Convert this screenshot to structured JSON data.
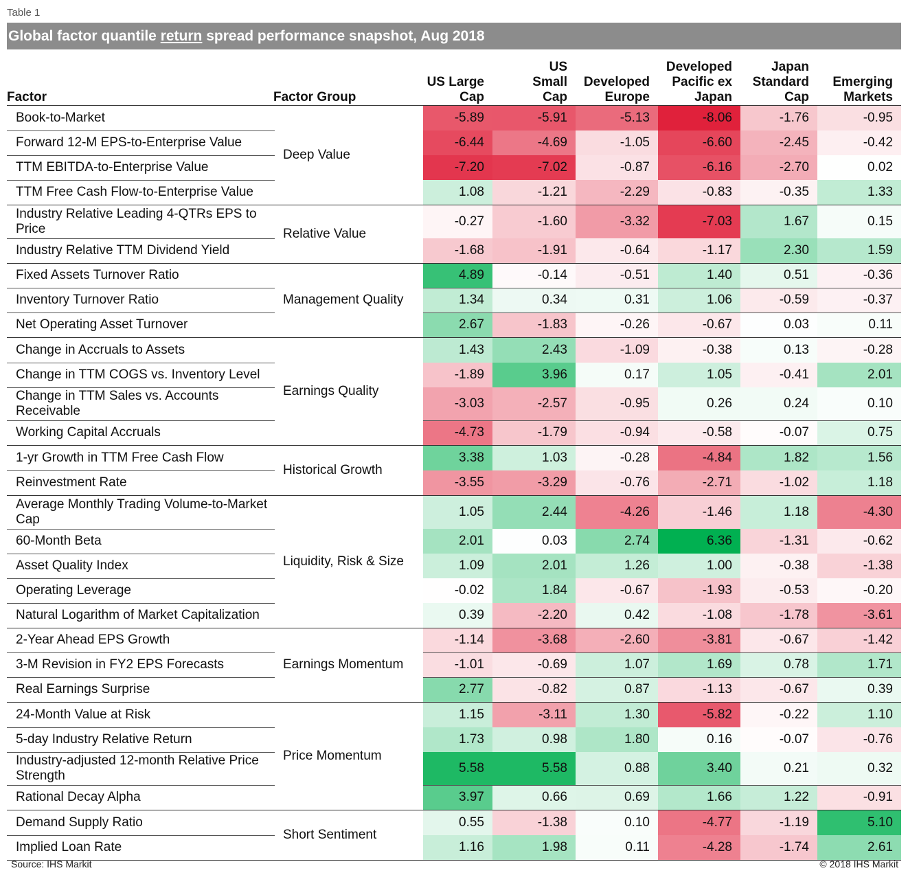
{
  "table_label": "Table 1",
  "title": {
    "pre": "Global factor quantile ",
    "underlined": "return",
    "post": " spread performance snapshot, Aug 2018"
  },
  "headers": {
    "factor": "Factor",
    "group": "Factor Group",
    "columns": [
      [
        "US Large",
        "Cap"
      ],
      [
        "US",
        "Small",
        "Cap"
      ],
      [
        "Developed",
        "Europe"
      ],
      [
        "Developed",
        "Pacific ex",
        "Japan"
      ],
      [
        "Japan",
        "Standard",
        "Cap"
      ],
      [
        "Emerging",
        "Markets"
      ]
    ]
  },
  "colors": {
    "positive": "#00b050",
    "negative": "#e0203a",
    "neutral": "#ffffff"
  },
  "chart_data": {
    "type": "table",
    "columns": [
      "US Large Cap",
      "US Small Cap",
      "Developed Europe",
      "Developed Pacific ex Japan",
      "Japan Standard Cap",
      "Emerging Markets"
    ],
    "groups": [
      {
        "name": "Deep Value",
        "rows": [
          {
            "factor": "Book-to-Market",
            "values": [
              -5.89,
              -5.91,
              -5.13,
              -8.06,
              -1.76,
              -0.95
            ]
          },
          {
            "factor": "Forward 12-M EPS-to-Enterprise Value",
            "values": [
              -6.44,
              -4.69,
              -1.05,
              -6.6,
              -2.45,
              -0.42
            ]
          },
          {
            "factor": "TTM EBITDA-to-Enterprise Value",
            "values": [
              -7.2,
              -7.02,
              -0.87,
              -6.16,
              -2.7,
              0.02
            ]
          },
          {
            "factor": "TTM Free Cash Flow-to-Enterprise Value",
            "values": [
              1.08,
              -1.21,
              -2.29,
              -0.83,
              -0.35,
              1.33
            ]
          }
        ]
      },
      {
        "name": "Relative Value",
        "rows": [
          {
            "factor": "Industry Relative Leading 4-QTRs EPS to Price",
            "values": [
              -0.27,
              -1.6,
              -3.32,
              -7.03,
              1.67,
              0.15
            ]
          },
          {
            "factor": "Industry Relative TTM Dividend Yield",
            "values": [
              -1.68,
              -1.91,
              -0.64,
              -1.17,
              2.3,
              1.59
            ]
          }
        ]
      },
      {
        "name": "Management Quality",
        "rows": [
          {
            "factor": "Fixed Assets Turnover Ratio",
            "values": [
              4.89,
              -0.14,
              -0.51,
              1.4,
              0.51,
              -0.36
            ]
          },
          {
            "factor": "Inventory Turnover Ratio",
            "values": [
              1.34,
              0.34,
              0.31,
              1.06,
              -0.59,
              -0.37
            ]
          },
          {
            "factor": "Net Operating Asset Turnover",
            "values": [
              2.67,
              -1.83,
              -0.26,
              -0.67,
              0.03,
              0.11
            ]
          }
        ]
      },
      {
        "name": "Earnings Quality",
        "rows": [
          {
            "factor": "Change in Accruals to Assets",
            "values": [
              1.43,
              2.43,
              -1.09,
              -0.38,
              0.13,
              -0.28
            ]
          },
          {
            "factor": "Change in TTM COGS vs. Inventory Level",
            "values": [
              -1.89,
              3.96,
              0.17,
              1.05,
              -0.41,
              2.01
            ]
          },
          {
            "factor": "Change in TTM Sales vs. Accounts Receivable",
            "values": [
              -3.03,
              -2.57,
              -0.95,
              0.26,
              0.24,
              0.1
            ]
          },
          {
            "factor": "Working Capital Accruals",
            "values": [
              -4.73,
              -1.79,
              -0.94,
              -0.58,
              -0.07,
              0.75
            ]
          }
        ]
      },
      {
        "name": "Historical Growth",
        "rows": [
          {
            "factor": "1-yr Growth in TTM Free Cash Flow",
            "values": [
              3.38,
              1.03,
              -0.28,
              -4.84,
              1.82,
              1.56
            ]
          },
          {
            "factor": "Reinvestment Rate",
            "values": [
              -3.55,
              -3.29,
              -0.76,
              -2.71,
              -1.02,
              1.18
            ]
          }
        ]
      },
      {
        "name": "Liquidity, Risk & Size",
        "rows": [
          {
            "factor": "Average Monthly Trading Volume-to-Market Cap",
            "values": [
              1.05,
              2.44,
              -4.26,
              -1.46,
              1.18,
              -4.3
            ]
          },
          {
            "factor": "60-Month Beta",
            "values": [
              2.01,
              0.03,
              2.74,
              6.36,
              -1.31,
              -0.62
            ]
          },
          {
            "factor": "Asset Quality Index",
            "values": [
              1.09,
              2.01,
              1.26,
              1.0,
              -0.38,
              -1.38
            ]
          },
          {
            "factor": "Operating Leverage",
            "values": [
              -0.02,
              1.84,
              -0.67,
              -1.93,
              -0.53,
              -0.2
            ]
          },
          {
            "factor": "Natural Logarithm of Market Capitalization",
            "values": [
              0.39,
              -2.2,
              0.42,
              -1.08,
              -1.78,
              -3.61
            ]
          }
        ]
      },
      {
        "name": "Earnings Momentum",
        "rows": [
          {
            "factor": "2-Year Ahead EPS Growth",
            "values": [
              -1.14,
              -3.68,
              -2.6,
              -3.81,
              -0.67,
              -1.42
            ]
          },
          {
            "factor": "3-M Revision in  FY2 EPS Forecasts",
            "values": [
              -1.01,
              -0.69,
              1.07,
              1.69,
              0.78,
              1.71
            ]
          },
          {
            "factor": "Real Earnings Surprise",
            "values": [
              2.77,
              -0.82,
              0.87,
              -1.13,
              -0.67,
              0.39
            ]
          }
        ]
      },
      {
        "name": "Price Momentum",
        "rows": [
          {
            "factor": "24-Month Value at Risk",
            "values": [
              1.15,
              -3.11,
              1.3,
              -5.82,
              -0.22,
              1.1
            ]
          },
          {
            "factor": "5-day Industry Relative Return",
            "values": [
              1.73,
              0.98,
              1.8,
              0.16,
              -0.07,
              -0.76
            ]
          },
          {
            "factor": "Industry-adjusted 12-month Relative Price Strength",
            "values": [
              5.58,
              5.58,
              0.88,
              3.4,
              0.21,
              0.32
            ]
          },
          {
            "factor": "Rational Decay Alpha",
            "values": [
              3.97,
              0.66,
              0.69,
              1.66,
              1.22,
              -0.91
            ]
          }
        ]
      },
      {
        "name": "Short Sentiment",
        "rows": [
          {
            "factor": "Demand Supply Ratio",
            "values": [
              0.55,
              -1.38,
              0.1,
              -4.77,
              -1.19,
              5.1
            ]
          },
          {
            "factor": "Implied Loan Rate",
            "values": [
              1.16,
              1.98,
              0.11,
              -4.28,
              -1.74,
              2.61
            ]
          }
        ]
      }
    ]
  },
  "footer": {
    "source": "Source: IHS Markit",
    "copyright": "© 2018 IHS Markit"
  }
}
